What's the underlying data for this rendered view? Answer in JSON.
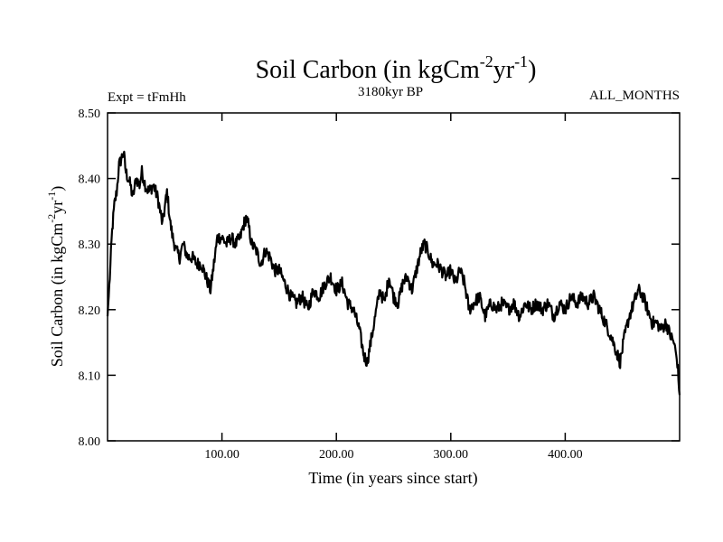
{
  "chart_data": {
    "type": "line",
    "title": "Soil Carbon (in kgCm",
    "title_sup1": "-2",
    "title_mid": "yr",
    "title_sup2": "-1",
    "title_end": ")",
    "subtitle": "3180kyr BP",
    "left_note": "Expt = tFmHh",
    "right_note": "ALL_MONTHS",
    "xlabel": "Time (in years since start)",
    "ylabel": "Soil Carbon (in kgCm",
    "ylabel_sup1": "-2",
    "ylabel_mid": "yr",
    "ylabel_sup2": "-1",
    "ylabel_end": ")",
    "xlim": [
      0,
      500
    ],
    "ylim": [
      8.0,
      8.5
    ],
    "xticks": [
      100,
      200,
      300,
      400
    ],
    "xtick_labels": [
      "100.00",
      "200.00",
      "300.00",
      "400.00"
    ],
    "yticks": [
      8.0,
      8.1,
      8.2,
      8.3,
      8.4,
      8.5
    ],
    "ytick_labels": [
      "8.00",
      "8.10",
      "8.20",
      "8.30",
      "8.40",
      "8.50"
    ],
    "grid": false,
    "line_color": "#000000",
    "series": [
      {
        "x": [
          0,
          2,
          4,
          6,
          8,
          10,
          12,
          14,
          16,
          18,
          20,
          22,
          25,
          28,
          30,
          33,
          36,
          40,
          44,
          48,
          52,
          55,
          57,
          60,
          63,
          66,
          70,
          74,
          78,
          82,
          86,
          90,
          93,
          96,
          100,
          104,
          108,
          112,
          116,
          119,
          121,
          123,
          126,
          130,
          134,
          138,
          142,
          146,
          150,
          155,
          160,
          165,
          170,
          175,
          180,
          185,
          190,
          195,
          200,
          205,
          210,
          215,
          220,
          224,
          227,
          230,
          234,
          238,
          242,
          246,
          250,
          254,
          258,
          262,
          266,
          270,
          274,
          277,
          280,
          284,
          288,
          292,
          296,
          300,
          304,
          308,
          312,
          316,
          320,
          325,
          330,
          335,
          340,
          345,
          350,
          355,
          360,
          365,
          370,
          375,
          380,
          385,
          390,
          395,
          400,
          405,
          410,
          415,
          420,
          425,
          430,
          435,
          440,
          444,
          448,
          452,
          456,
          460,
          464,
          468,
          472,
          476,
          480,
          484,
          488,
          492,
          495,
          498,
          500
        ],
        "values": [
          8.19,
          8.25,
          8.32,
          8.36,
          8.38,
          8.42,
          8.43,
          8.44,
          8.41,
          8.4,
          8.39,
          8.37,
          8.4,
          8.39,
          8.41,
          8.39,
          8.38,
          8.39,
          8.37,
          8.33,
          8.38,
          8.33,
          8.31,
          8.29,
          8.28,
          8.3,
          8.28,
          8.28,
          8.27,
          8.27,
          8.25,
          8.23,
          8.27,
          8.31,
          8.31,
          8.3,
          8.31,
          8.3,
          8.31,
          8.33,
          8.34,
          8.33,
          8.3,
          8.29,
          8.27,
          8.29,
          8.28,
          8.26,
          8.26,
          8.24,
          8.22,
          8.21,
          8.22,
          8.2,
          8.23,
          8.22,
          8.24,
          8.25,
          8.23,
          8.24,
          8.21,
          8.2,
          8.17,
          8.13,
          8.12,
          8.15,
          8.19,
          8.23,
          8.21,
          8.25,
          8.22,
          8.21,
          8.24,
          8.25,
          8.23,
          8.26,
          8.29,
          8.3,
          8.29,
          8.27,
          8.27,
          8.26,
          8.25,
          8.26,
          8.24,
          8.26,
          8.24,
          8.2,
          8.21,
          8.22,
          8.19,
          8.21,
          8.2,
          8.21,
          8.2,
          8.21,
          8.19,
          8.21,
          8.2,
          8.21,
          8.2,
          8.21,
          8.19,
          8.21,
          8.2,
          8.22,
          8.21,
          8.22,
          8.21,
          8.22,
          8.2,
          8.18,
          8.16,
          8.14,
          8.12,
          8.16,
          8.19,
          8.21,
          8.23,
          8.22,
          8.2,
          8.18,
          8.18,
          8.17,
          8.18,
          8.16,
          8.15,
          8.12,
          8.07
        ]
      }
    ]
  }
}
